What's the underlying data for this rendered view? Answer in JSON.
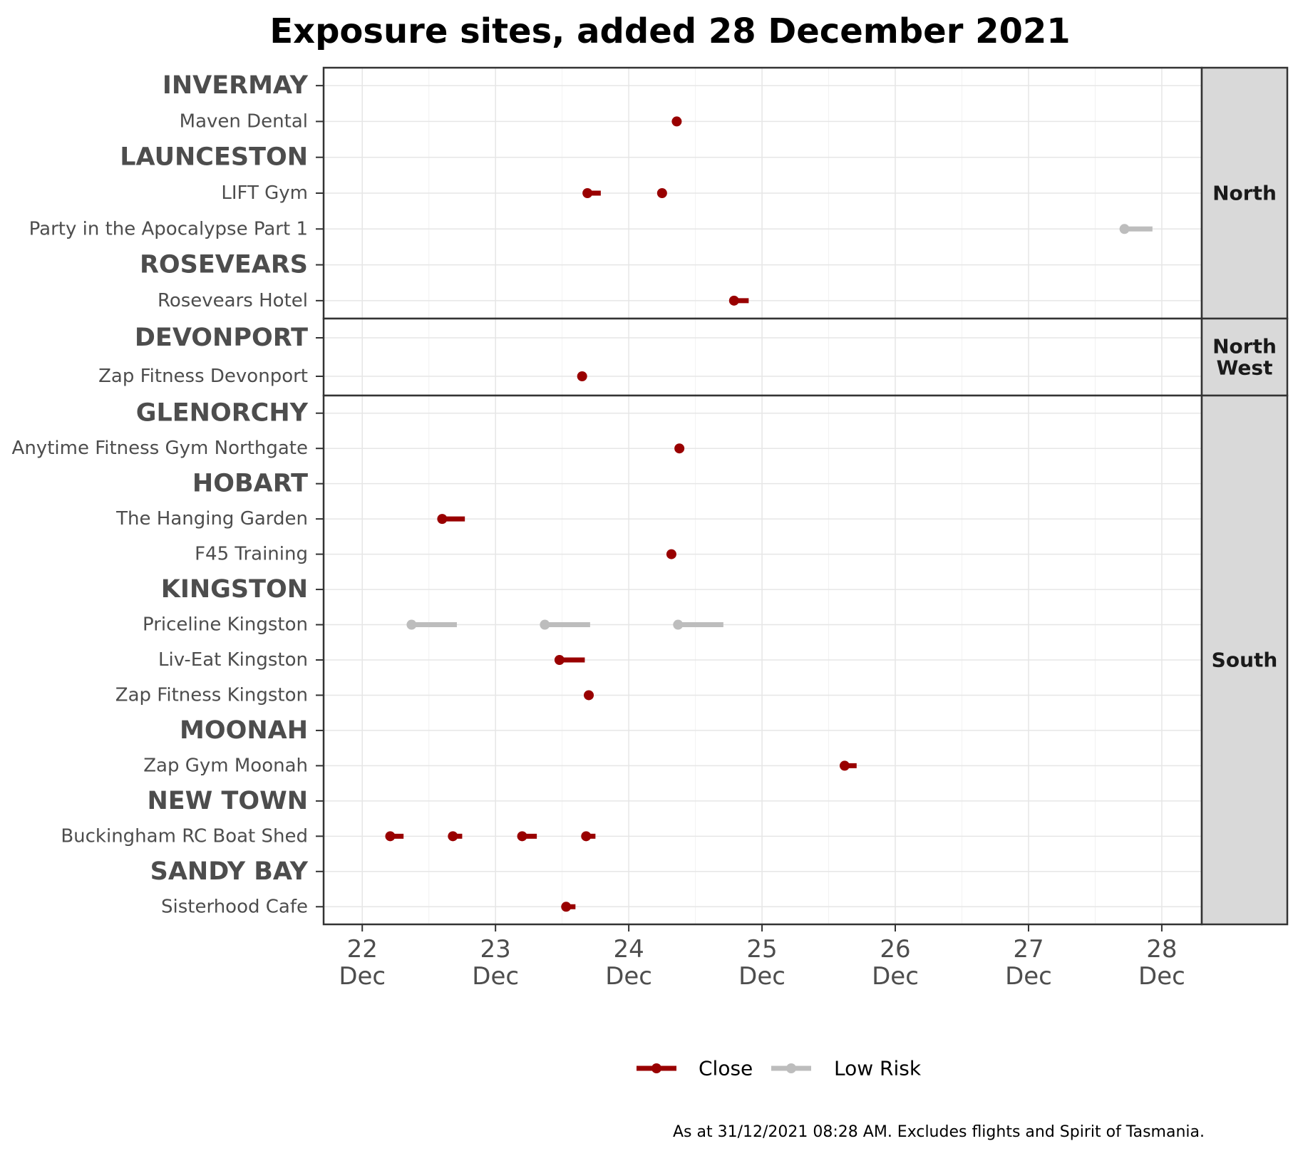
{
  "chart_data": {
    "type": "timeline-dot",
    "title": "Exposure sites, added 28 December 2021",
    "caption": "As at 31/12/2021 08:28 AM. Excludes flights and Spirit of Tasmania.",
    "x_ticks": [
      {
        "value": 22,
        "day": "22",
        "month": "Dec"
      },
      {
        "value": 23,
        "day": "23",
        "month": "Dec"
      },
      {
        "value": 24,
        "day": "24",
        "month": "Dec"
      },
      {
        "value": 25,
        "day": "25",
        "month": "Dec"
      },
      {
        "value": 26,
        "day": "26",
        "month": "Dec"
      },
      {
        "value": 27,
        "day": "27",
        "month": "Dec"
      },
      {
        "value": 28,
        "day": "28",
        "month": "Dec"
      }
    ],
    "xlim": [
      21.71,
      28.3
    ],
    "legend": {
      "position": "bottom",
      "items": [
        {
          "key": "close",
          "label": "Close",
          "color": "#990000"
        },
        {
          "key": "low",
          "label": "Low Risk",
          "color": "#bdbdbd"
        }
      ]
    },
    "panels": [
      {
        "name": "North",
        "rows": [
          {
            "label": "INVERMAY",
            "kind": "town",
            "intervals": []
          },
          {
            "label": "Maven Dental",
            "kind": "site",
            "intervals": [
              {
                "start": 24.36,
                "end": 24.36,
                "risk": "close"
              }
            ]
          },
          {
            "label": "LAUNCESTON",
            "kind": "town",
            "intervals": []
          },
          {
            "label": "LIFT Gym",
            "kind": "site",
            "intervals": [
              {
                "start": 23.69,
                "end": 23.79,
                "risk": "close"
              },
              {
                "start": 24.25,
                "end": 24.25,
                "risk": "close"
              }
            ]
          },
          {
            "label": "Party in the Apocalypse Part 1",
            "kind": "site",
            "intervals": [
              {
                "start": 27.72,
                "end": 27.93,
                "risk": "low"
              }
            ]
          },
          {
            "label": "ROSEVEARS",
            "kind": "town",
            "intervals": []
          },
          {
            "label": "Rosevears Hotel",
            "kind": "site",
            "intervals": [
              {
                "start": 24.79,
                "end": 24.9,
                "risk": "close"
              }
            ]
          }
        ]
      },
      {
        "name": "North\nWest",
        "name_lines": [
          "North",
          "West"
        ],
        "rows": [
          {
            "label": "DEVONPORT",
            "kind": "town",
            "intervals": []
          },
          {
            "label": "Zap Fitness Devonport",
            "kind": "site",
            "intervals": [
              {
                "start": 23.65,
                "end": 23.65,
                "risk": "close"
              }
            ]
          }
        ]
      },
      {
        "name": "South",
        "rows": [
          {
            "label": "GLENORCHY",
            "kind": "town",
            "intervals": []
          },
          {
            "label": "Anytime Fitness Gym Northgate",
            "kind": "site",
            "intervals": [
              {
                "start": 24.38,
                "end": 24.38,
                "risk": "close"
              }
            ]
          },
          {
            "label": "HOBART",
            "kind": "town",
            "intervals": []
          },
          {
            "label": "The Hanging Garden",
            "kind": "site",
            "intervals": [
              {
                "start": 22.6,
                "end": 22.77,
                "risk": "close"
              }
            ]
          },
          {
            "label": "F45 Training",
            "kind": "site",
            "intervals": [
              {
                "start": 24.32,
                "end": 24.32,
                "risk": "close"
              }
            ]
          },
          {
            "label": "KINGSTON",
            "kind": "town",
            "intervals": []
          },
          {
            "label": "Priceline Kingston",
            "kind": "site",
            "intervals": [
              {
                "start": 22.37,
                "end": 22.71,
                "risk": "low"
              },
              {
                "start": 23.37,
                "end": 23.71,
                "risk": "low"
              },
              {
                "start": 24.37,
                "end": 24.71,
                "risk": "low"
              }
            ]
          },
          {
            "label": "Liv-Eat Kingston",
            "kind": "site",
            "intervals": [
              {
                "start": 23.48,
                "end": 23.67,
                "risk": "close"
              }
            ]
          },
          {
            "label": "Zap Fitness Kingston",
            "kind": "site",
            "intervals": [
              {
                "start": 23.7,
                "end": 23.7,
                "risk": "close"
              }
            ]
          },
          {
            "label": "MOONAH",
            "kind": "town",
            "intervals": []
          },
          {
            "label": "Zap Gym Moonah",
            "kind": "site",
            "intervals": [
              {
                "start": 25.62,
                "end": 25.71,
                "risk": "close"
              }
            ]
          },
          {
            "label": "NEW TOWN",
            "kind": "town",
            "intervals": []
          },
          {
            "label": "Buckingham RC Boat Shed",
            "kind": "site",
            "intervals": [
              {
                "start": 22.21,
                "end": 22.31,
                "risk": "close"
              },
              {
                "start": 22.68,
                "end": 22.75,
                "risk": "close"
              },
              {
                "start": 23.2,
                "end": 23.31,
                "risk": "close"
              },
              {
                "start": 23.68,
                "end": 23.75,
                "risk": "close"
              }
            ]
          },
          {
            "label": "SANDY BAY",
            "kind": "town",
            "intervals": []
          },
          {
            "label": "Sisterhood Cafe",
            "kind": "site",
            "intervals": [
              {
                "start": 23.53,
                "end": 23.6,
                "risk": "close"
              }
            ]
          }
        ]
      }
    ]
  }
}
